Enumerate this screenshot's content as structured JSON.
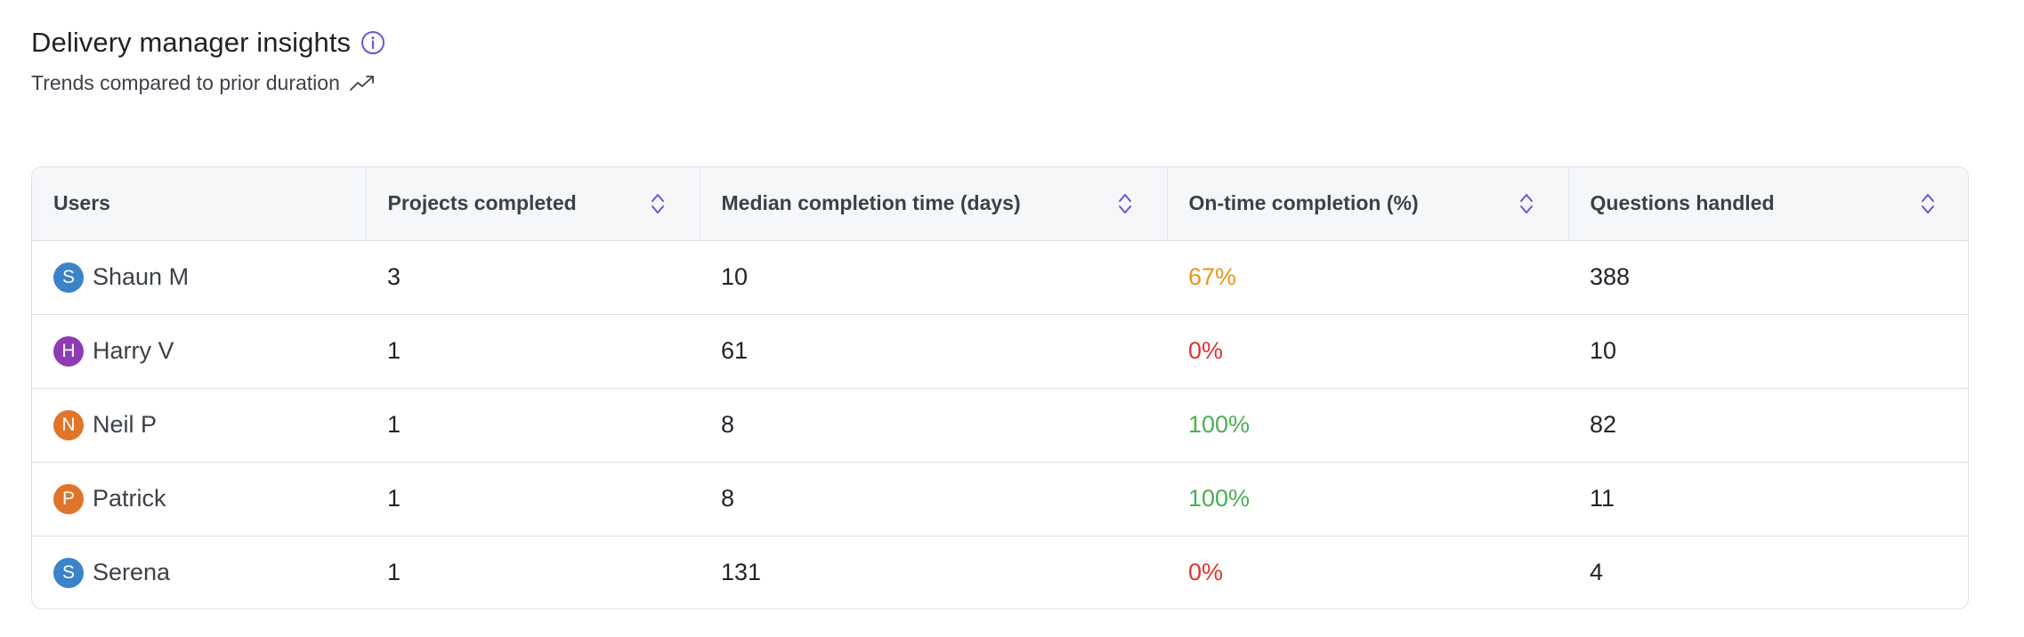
{
  "header": {
    "title": "Delivery manager insights",
    "subtitle": "Trends compared to prior duration",
    "info_icon": "info-icon",
    "trend_icon": "trending-up-icon"
  },
  "colors": {
    "accent": "#6e56cf",
    "header_bg": "#f6f7f9",
    "border": "#dcdfeb",
    "warning": "#e8961a",
    "danger": "#e0342f",
    "success": "#4caf50"
  },
  "table": {
    "columns": [
      {
        "label": "Users",
        "sortable": false
      },
      {
        "label": "Projects completed",
        "sortable": true
      },
      {
        "label": "Median completion time (days)",
        "sortable": true
      },
      {
        "label": "On-time completion (%)",
        "sortable": true
      },
      {
        "label": "Questions handled",
        "sortable": true
      }
    ],
    "rows": [
      {
        "initial": "S",
        "avatar_color": "#3b82c9",
        "name": "Shaun M",
        "projects": "3",
        "median": "10",
        "ontime": "67%",
        "ontime_color": "#e8961a",
        "questions": "388"
      },
      {
        "initial": "H",
        "avatar_color": "#8e3bb5",
        "name": "Harry V",
        "projects": "1",
        "median": "61",
        "ontime": "0%",
        "ontime_color": "#e0342f",
        "questions": "10"
      },
      {
        "initial": "N",
        "avatar_color": "#e0742a",
        "name": "Neil P",
        "projects": "1",
        "median": "8",
        "ontime": "100%",
        "ontime_color": "#4caf50",
        "questions": "82"
      },
      {
        "initial": "P",
        "avatar_color": "#e0742a",
        "name": "Patrick",
        "projects": "1",
        "median": "8",
        "ontime": "100%",
        "ontime_color": "#4caf50",
        "questions": "11"
      },
      {
        "initial": "S",
        "avatar_color": "#3b82c9",
        "name": "Serena",
        "projects": "1",
        "median": "131",
        "ontime": "0%",
        "ontime_color": "#e0342f",
        "questions": "4"
      }
    ]
  }
}
